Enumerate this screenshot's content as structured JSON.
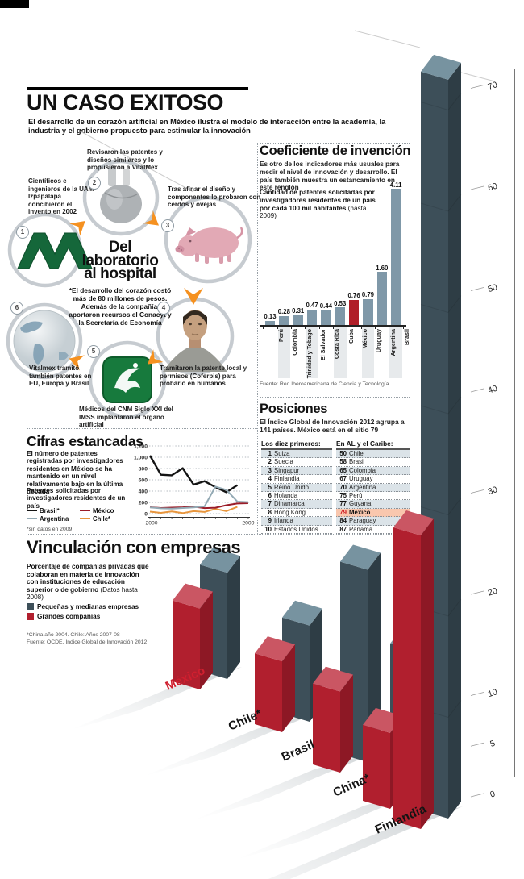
{
  "header": {
    "title": "UN CASO EXITOSO",
    "subtitle": "El desarrollo de un corazón artificial en México ilustra el modelo de interacción entre la academia, la industria y el gobierno propuesto para estimular la innovación"
  },
  "process": {
    "center_title_lines": [
      "Del",
      "laboratorio",
      "al hospital"
    ],
    "center_note": "*El desarrollo del corazón costó más de 80 millones de pesos. Además de la compañía, aportaron recursos el Conacyt y la Secretaría de Economía",
    "steps": [
      {
        "num": "1",
        "text": "Científicos e ingenieros de la UAM-Izpapalapa concibieron el invento en 2002",
        "icon": "uam-logo"
      },
      {
        "num": "2",
        "text": "Revisaron las patentes y diseños similares y lo propusieron a VitalMex",
        "icon": "artificial-heart"
      },
      {
        "num": "3",
        "text": "Tras afinar el diseño y componentes lo probaron con cerdos y ovejas",
        "icon": "pig"
      },
      {
        "num": "4",
        "text": "Tramitaron la patente local y permisos (Coferpis) para probarlo en humanos",
        "icon": "patient"
      },
      {
        "num": "5",
        "text": "Médicos del CNM Siglo XXI del IMSS implantaron el órgano artificial",
        "icon": "imss-logo"
      },
      {
        "num": "6",
        "text": "Vitalmex tramitó también patentes en EU, Europa y Brasil",
        "icon": "globe"
      }
    ]
  },
  "coeficiente": {
    "title": "Coeficiente de invención",
    "intro": "Es otro de los indicadores más usuales para medir el nivel de innovación y desarrollo. El país también muestra un estancamiento en este renglón",
    "chart_label": "Cantidad de patentes solicitadas por investigadores residentes de un país por cada 100 mil habitantes",
    "chart_label_suffix": " (hasta 2009)",
    "fuente": "Fuente: Red Iberoamericana de Ciencia y Tecnología"
  },
  "posiciones": {
    "title": "Posiciones",
    "intro": "El Índice Global de Innovación 2012 agrupa a 141 países. México está en el sitio 79",
    "col1_header": "Los diez primeros:",
    "col2_header": "En AL y el Caribe:",
    "top10": [
      {
        "rank": "1",
        "country": "Suiza"
      },
      {
        "rank": "2",
        "country": "Suecia"
      },
      {
        "rank": "3",
        "country": "Singapur"
      },
      {
        "rank": "4",
        "country": "Finlandia"
      },
      {
        "rank": "5",
        "country": "Reino Unido"
      },
      {
        "rank": "6",
        "country": "Holanda"
      },
      {
        "rank": "7",
        "country": "Dinamarca"
      },
      {
        "rank": "8",
        "country": "Hong Kong"
      },
      {
        "rank": "9",
        "country": "Irlanda"
      },
      {
        "rank": "10",
        "country": "Estados Unidos"
      }
    ],
    "latam": [
      {
        "rank": "50",
        "country": "Chile"
      },
      {
        "rank": "58",
        "country": "Brasil"
      },
      {
        "rank": "65",
        "country": "Colombia"
      },
      {
        "rank": "67",
        "country": "Uruguay"
      },
      {
        "rank": "70",
        "country": "Argentina"
      },
      {
        "rank": "75",
        "country": "Perú"
      },
      {
        "rank": "77",
        "country": "Guyana"
      },
      {
        "rank": "79",
        "country": "México",
        "highlight": true
      },
      {
        "rank": "84",
        "country": "Paraguay"
      },
      {
        "rank": "87",
        "country": "Panamá"
      }
    ]
  },
  "cifras": {
    "title": "Cifras estancadas",
    "intro": "El número de patentes registradas por investigadores residentes en México se ha mantenido en un nivel relativamente bajo en la última década",
    "chart_label": "Patentes solicitadas por investigadores residentes de un país",
    "footnote": "*sin datos en 2009"
  },
  "vinculacion": {
    "title": "Vinculación con empresas",
    "intro": "Porcentaje de compañías privadas que colaboran en materia de innovación con instituciones de educación superior o de gobierno",
    "intro_suffix": " (Datos hasta 2008)",
    "legend": [
      {
        "label": "Pequeñas y medianas empresas",
        "color": "#3d4f59"
      },
      {
        "label": "Grandes compañías",
        "color": "#b11f2e"
      }
    ],
    "footnote1": "*China año 2004. Chile: Años 2007-08",
    "footnote2": "Fuente: OCDE, Indice Global de Innovación 2012"
  },
  "chart_data": [
    {
      "id": "coeficiente_invencion",
      "type": "bar",
      "title": "Cantidad de patentes solicitadas por investigadores residentes de un país por cada 100 mil habitantes (hasta 2009)",
      "categories": [
        "Perú",
        "Colombia",
        "Trinidad y Tobago",
        "El Salvador",
        "Costa Rica",
        "Cuba",
        "México",
        "Uruguay",
        "Argentina",
        "Brasil"
      ],
      "values": [
        0.13,
        0.28,
        0.31,
        0.47,
        0.44,
        0.53,
        0.76,
        0.79,
        1.6,
        4.11
      ],
      "value_labels": [
        "0.13",
        "0.28",
        "0.31",
        "0.47",
        "0.44",
        "0.53",
        "0.76",
        "0.79",
        "1.60",
        "4.11"
      ],
      "highlight_category": "México",
      "bar_color": "#7f98a8",
      "highlight_color": "#b01e28",
      "ylim": [
        0,
        4.5
      ],
      "grid": false,
      "legend_position": "none"
    },
    {
      "id": "patentes_residentes",
      "type": "line",
      "title": "Patentes solicitadas por investigadores residentes de un país",
      "x_start": 2000,
      "x_end": 2009,
      "xtick_labels": [
        "2000",
        "2009"
      ],
      "ylim": [
        0,
        1200
      ],
      "ytick_values": [
        0,
        200,
        400,
        600,
        800,
        1000,
        1200
      ],
      "ytick_labels": [
        "0",
        "200",
        "400",
        "600",
        "800",
        "1,000",
        "1,200"
      ],
      "grid": "dotted-horizontal",
      "footnote": "*sin datos en 2009",
      "series": [
        {
          "name": "Brasil*",
          "color": "#141414",
          "values": [
            1030,
            690,
            680,
            805,
            515,
            575,
            470,
            380,
            505
          ]
        },
        {
          "name": "México",
          "color": "#9b1c28",
          "values": [
            115,
            100,
            108,
            112,
            125,
            98,
            105,
            150,
            180,
            185
          ]
        },
        {
          "name": "Argentina",
          "color": "#93a9b4",
          "values": [
            110,
            95,
            90,
            100,
            110,
            130,
            480,
            420,
            215,
            205
          ]
        },
        {
          "name": "Chile*",
          "color": "#e8963e",
          "values": [
            35,
            15,
            40,
            10,
            45,
            30,
            85,
            45,
            120
          ]
        }
      ]
    },
    {
      "id": "vinculacion_empresas",
      "type": "bar3d",
      "title": "Vinculación con empresas (% de compañías privadas que colaboran en innovación)",
      "categories": [
        "México",
        "Chile*",
        "Brasil",
        "China*",
        "Finlandia"
      ],
      "highlight_category": "México",
      "ylim": [
        0,
        70
      ],
      "yticks": [
        0,
        5,
        10,
        20,
        30,
        40,
        50,
        60,
        70
      ],
      "series": [
        {
          "name": "Grandes compañías",
          "color": "#b11f2e",
          "values": [
            8,
            7,
            8,
            7.5,
            29
          ]
        },
        {
          "name": "Pequeñas y medianas empresas",
          "color": "#3d4f59",
          "values": [
            10.5,
            9.5,
            19,
            14.5,
            73
          ]
        }
      ]
    }
  ]
}
